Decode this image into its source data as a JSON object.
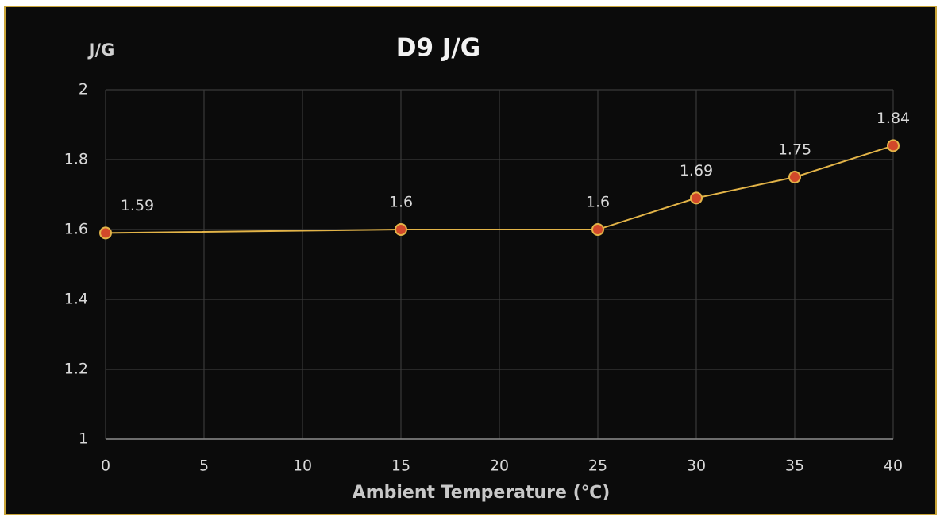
{
  "chart_data": {
    "type": "line",
    "title": "D9 J/G",
    "y_label": "J/G",
    "x_label": "Ambient Temperature (℃)",
    "x": [
      0,
      15,
      25,
      30,
      35,
      40
    ],
    "series": [
      {
        "name": "D9 J/G",
        "color": "#e3b448",
        "marker_color": "#d2482a",
        "values": [
          1.59,
          1.6,
          1.6,
          1.69,
          1.75,
          1.84
        ]
      }
    ],
    "xlim": [
      0,
      40
    ],
    "xticks": [
      0,
      5,
      10,
      15,
      20,
      25,
      30,
      35,
      40
    ],
    "ylim": [
      1,
      2
    ],
    "yticks": [
      1,
      1.2,
      1.4,
      1.6,
      1.8,
      2
    ],
    "grid": true
  }
}
